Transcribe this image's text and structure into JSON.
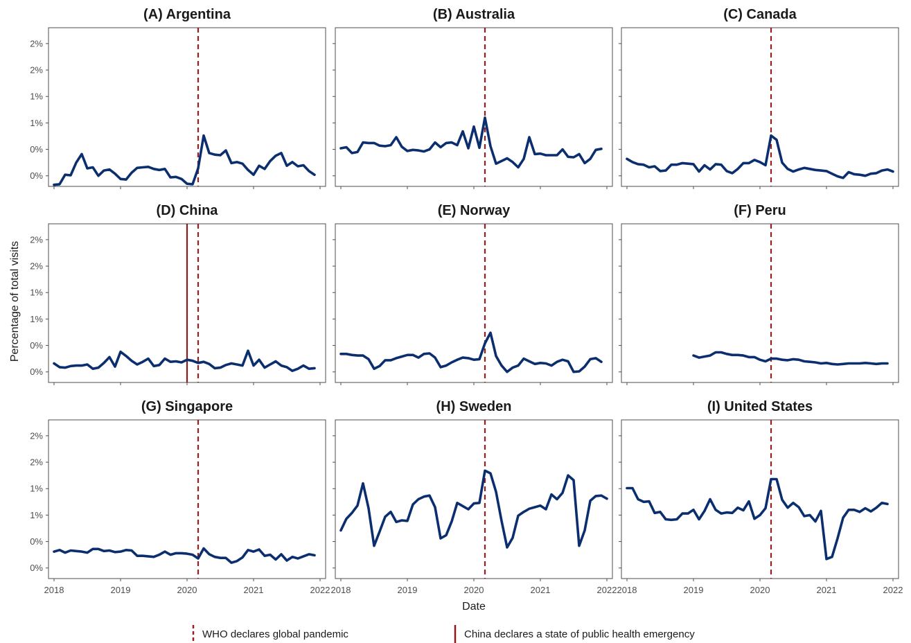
{
  "colors": {
    "series": "#0b2f6e",
    "who_line": "#9b1c1c",
    "china_line": "#8b1a1a",
    "frame": "#4d4d4d"
  },
  "chart_data": {
    "type": "line",
    "xlabel": "Date",
    "ylabel": "Percentage of total visits",
    "xticks": [
      "2018",
      "2019",
      "2020",
      "2021",
      "2022"
    ],
    "xlim": [
      "2017-12",
      "2022-02"
    ],
    "ylim": [
      -0.2,
      2.8
    ],
    "yticks": [
      0.0,
      0.5,
      1.0,
      1.5,
      2.0,
      2.5
    ],
    "ytick_labels": [
      "0%",
      "0%",
      "1%",
      "1%",
      "2%",
      "2%"
    ],
    "grid": false,
    "legend_position": "bottom",
    "events": [
      {
        "label": "WHO declares global pandemic",
        "date": "2020-03",
        "style": "dashed"
      },
      {
        "label": "China declares a state of public health emergency",
        "date": "2020-01",
        "style": "solid",
        "panels": [
          "(D) China"
        ]
      }
    ],
    "panels": [
      {
        "title": "(A) Argentina",
        "start": "2018-01",
        "values": [
          -0.17,
          -0.16,
          0.02,
          0.01,
          0.25,
          0.41,
          0.14,
          0.16,
          0.0,
          0.1,
          0.12,
          0.04,
          -0.06,
          -0.07,
          0.06,
          0.15,
          0.16,
          0.17,
          0.13,
          0.11,
          0.13,
          -0.03,
          -0.02,
          -0.06,
          -0.15,
          -0.16,
          0.14,
          0.76,
          0.43,
          0.4,
          0.39,
          0.48,
          0.24,
          0.26,
          0.23,
          0.11,
          0.02,
          0.19,
          0.13,
          0.28,
          0.38,
          0.43,
          0.19,
          0.26,
          0.18,
          0.2,
          0.09,
          0.02
        ]
      },
      {
        "title": "(B) Australia",
        "start": "2018-01",
        "values": [
          0.52,
          0.54,
          0.43,
          0.45,
          0.63,
          0.62,
          0.62,
          0.57,
          0.56,
          0.58,
          0.73,
          0.55,
          0.47,
          0.49,
          0.48,
          0.46,
          0.5,
          0.63,
          0.54,
          0.62,
          0.63,
          0.58,
          0.84,
          0.52,
          0.93,
          0.53,
          1.1,
          0.56,
          0.23,
          0.28,
          0.33,
          0.26,
          0.16,
          0.32,
          0.73,
          0.41,
          0.42,
          0.39,
          0.39,
          0.39,
          0.5,
          0.36,
          0.35,
          0.41,
          0.24,
          0.32,
          0.49,
          0.51
        ]
      },
      {
        "title": "(C) Canada",
        "start": "2018-01",
        "values": [
          0.32,
          0.26,
          0.22,
          0.21,
          0.16,
          0.18,
          0.09,
          0.1,
          0.21,
          0.21,
          0.24,
          0.23,
          0.22,
          0.08,
          0.2,
          0.12,
          0.22,
          0.21,
          0.09,
          0.05,
          0.13,
          0.24,
          0.24,
          0.3,
          0.26,
          0.2,
          0.76,
          0.68,
          0.25,
          0.13,
          0.08,
          0.12,
          0.15,
          0.13,
          0.11,
          0.1,
          0.09,
          0.04,
          -0.01,
          -0.04,
          0.07,
          0.03,
          0.02,
          0.0,
          0.04,
          0.05,
          0.1,
          0.12,
          0.08
        ]
      },
      {
        "title": "(D) China",
        "start": "2018-01",
        "values": [
          0.16,
          0.09,
          0.08,
          0.11,
          0.12,
          0.12,
          0.14,
          0.06,
          0.08,
          0.17,
          0.28,
          0.1,
          0.38,
          0.3,
          0.21,
          0.14,
          0.19,
          0.25,
          0.11,
          0.13,
          0.25,
          0.19,
          0.2,
          0.18,
          0.23,
          0.21,
          0.17,
          0.19,
          0.15,
          0.07,
          0.08,
          0.13,
          0.16,
          0.14,
          0.12,
          0.4,
          0.12,
          0.23,
          0.08,
          0.14,
          0.2,
          0.12,
          0.09,
          0.02,
          0.06,
          0.12,
          0.06,
          0.07
        ]
      },
      {
        "title": "(E) Norway",
        "start": "2018-01",
        "values": [
          0.34,
          0.34,
          0.32,
          0.31,
          0.31,
          0.24,
          0.06,
          0.11,
          0.22,
          0.22,
          0.26,
          0.29,
          0.32,
          0.32,
          0.27,
          0.34,
          0.35,
          0.27,
          0.09,
          0.12,
          0.18,
          0.23,
          0.27,
          0.26,
          0.23,
          0.24,
          0.54,
          0.74,
          0.3,
          0.12,
          0.0,
          0.08,
          0.12,
          0.25,
          0.2,
          0.15,
          0.17,
          0.16,
          0.12,
          0.19,
          0.23,
          0.2,
          0.0,
          0.01,
          0.1,
          0.24,
          0.26,
          0.19
        ]
      },
      {
        "title": "(F) Peru",
        "start": "2019-01",
        "values": [
          0.31,
          0.27,
          0.29,
          0.31,
          0.37,
          0.37,
          0.34,
          0.32,
          0.32,
          0.31,
          0.28,
          0.28,
          0.23,
          0.2,
          0.25,
          0.25,
          0.23,
          0.22,
          0.24,
          0.23,
          0.2,
          0.19,
          0.18,
          0.16,
          0.17,
          0.15,
          0.14,
          0.15,
          0.16,
          0.16,
          0.16,
          0.17,
          0.16,
          0.15,
          0.16,
          0.16
        ]
      },
      {
        "title": "(G) Singapore",
        "start": "2018-01",
        "values": [
          0.31,
          0.34,
          0.29,
          0.33,
          0.32,
          0.31,
          0.29,
          0.36,
          0.36,
          0.32,
          0.33,
          0.3,
          0.31,
          0.34,
          0.33,
          0.23,
          0.23,
          0.22,
          0.21,
          0.25,
          0.31,
          0.25,
          0.28,
          0.28,
          0.27,
          0.25,
          0.18,
          0.37,
          0.26,
          0.21,
          0.19,
          0.19,
          0.1,
          0.13,
          0.2,
          0.34,
          0.31,
          0.35,
          0.23,
          0.25,
          0.16,
          0.26,
          0.14,
          0.21,
          0.18,
          0.22,
          0.26,
          0.24
        ]
      },
      {
        "title": "(H) Sweden",
        "start": "2018-01",
        "values": [
          0.71,
          0.93,
          1.04,
          1.18,
          1.6,
          1.13,
          0.42,
          0.69,
          0.97,
          1.06,
          0.87,
          0.9,
          0.89,
          1.2,
          1.3,
          1.35,
          1.37,
          1.15,
          0.56,
          0.62,
          0.88,
          1.23,
          1.17,
          1.11,
          1.22,
          1.23,
          1.84,
          1.79,
          1.44,
          0.89,
          0.39,
          0.57,
          0.99,
          1.06,
          1.12,
          1.15,
          1.18,
          1.11,
          1.39,
          1.3,
          1.42,
          1.75,
          1.66,
          0.42,
          0.71,
          1.27,
          1.36,
          1.37,
          1.31
        ]
      },
      {
        "title": "(I) United States",
        "start": "2018-01",
        "values": [
          1.51,
          1.51,
          1.3,
          1.25,
          1.26,
          1.04,
          1.06,
          0.92,
          0.91,
          0.92,
          1.03,
          1.03,
          1.1,
          0.92,
          1.08,
          1.3,
          1.1,
          1.03,
          1.05,
          1.04,
          1.14,
          1.09,
          1.26,
          0.93,
          1.0,
          1.13,
          1.68,
          1.68,
          1.29,
          1.14,
          1.23,
          1.15,
          0.98,
          1.0,
          0.88,
          1.08,
          0.17,
          0.21,
          0.56,
          0.95,
          1.1,
          1.1,
          1.06,
          1.13,
          1.07,
          1.14,
          1.23,
          1.21
        ]
      }
    ]
  }
}
